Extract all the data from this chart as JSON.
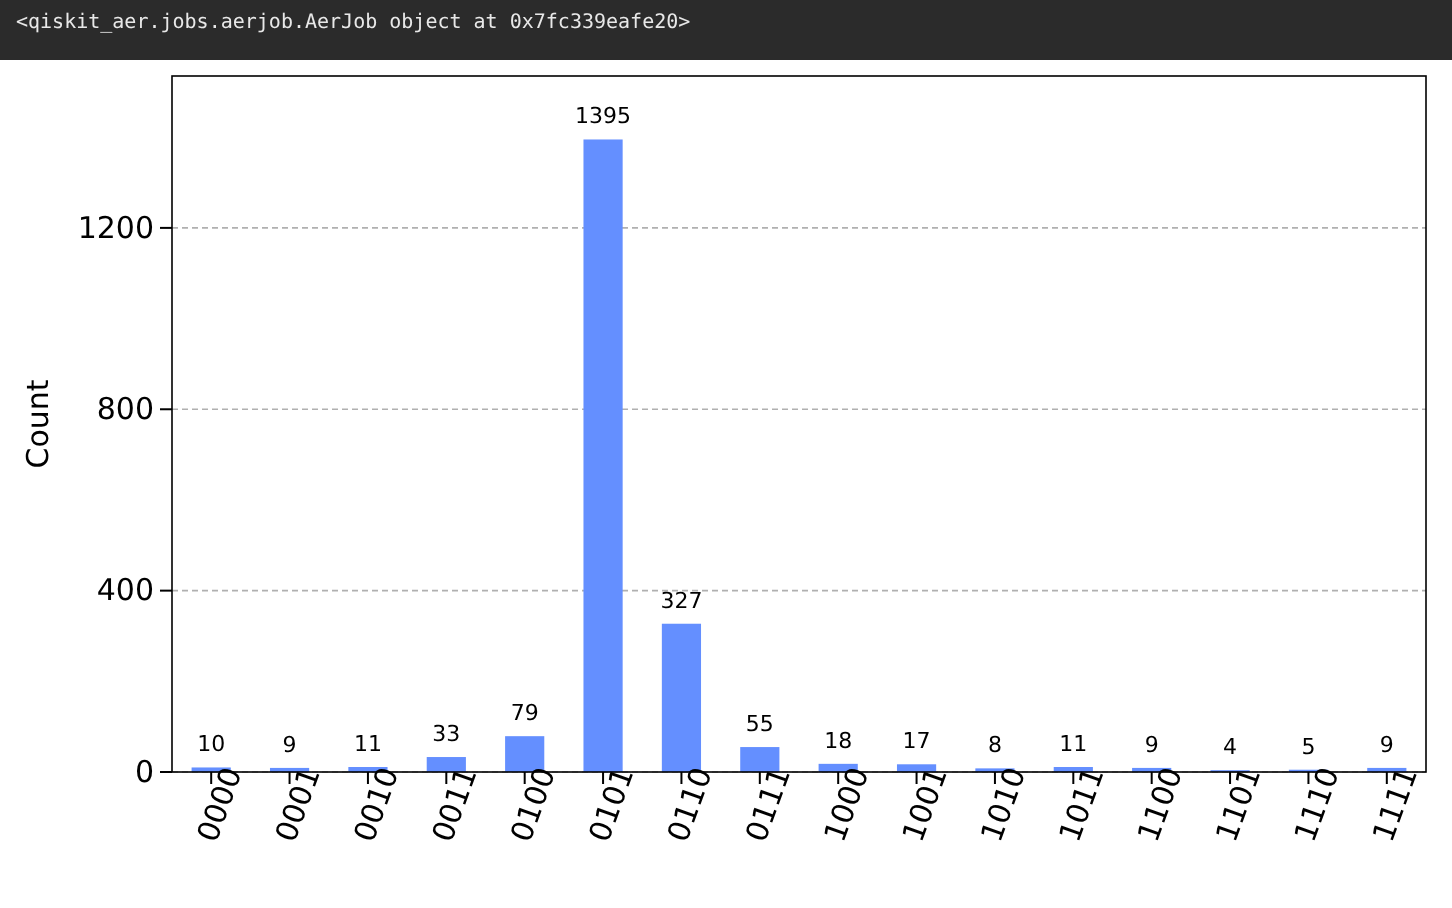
{
  "chart_data": {
    "type": "bar",
    "annotations": [
      "<qiskit_aer.jobs.aerjob.AerJob object at 0x7fc339eafe20>"
    ],
    "ylabel": "Count",
    "categories": [
      "0000",
      "0001",
      "0010",
      "0011",
      "0100",
      "0101",
      "0110",
      "0111",
      "1000",
      "1001",
      "1010",
      "1011",
      "1100",
      "1101",
      "1110",
      "1111"
    ],
    "values": [
      10,
      9,
      11,
      33,
      79,
      1395,
      327,
      55,
      18,
      17,
      8,
      11,
      9,
      4,
      5,
      9
    ],
    "color": "#648fff",
    "ylim": [
      0,
      1535
    ],
    "yticks": [
      0,
      400,
      800,
      1200
    ],
    "grid": "y",
    "data_labels": true
  }
}
